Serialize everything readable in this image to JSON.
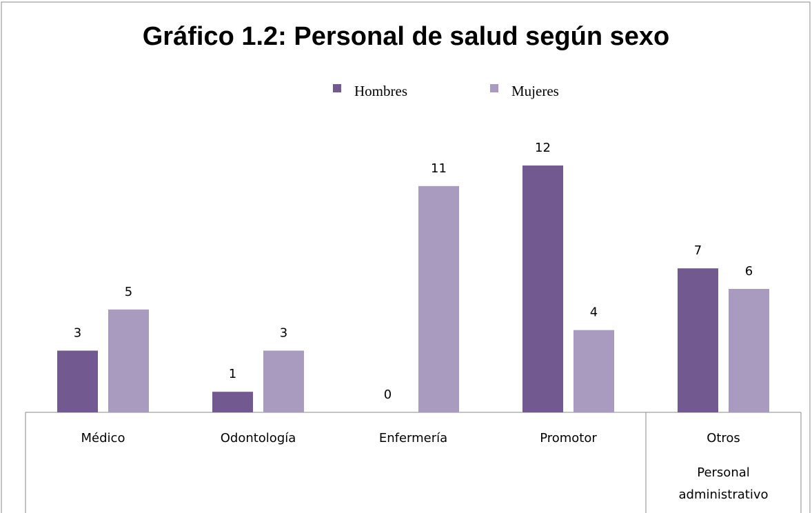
{
  "chart_data": {
    "type": "bar",
    "title": "Gráfico 1.2: Personal de salud según sexo",
    "categories": [
      "Médico",
      "Odontología",
      "Enfermería",
      "Promotor",
      "Otros"
    ],
    "category_groups": [
      null,
      null,
      null,
      null,
      "Personal administrativo"
    ],
    "series": [
      {
        "name": "Hombres",
        "color": "#725990",
        "values": [
          3,
          1,
          0,
          12,
          7
        ]
      },
      {
        "name": "Mujeres",
        "color": "#a99bbf",
        "values": [
          5,
          3,
          11,
          4,
          6
        ]
      }
    ],
    "legend": "top",
    "grid": false
  }
}
